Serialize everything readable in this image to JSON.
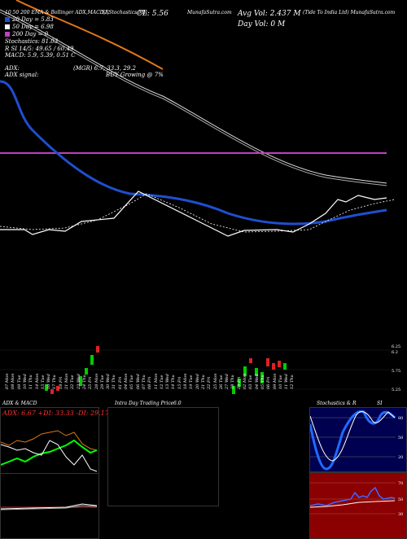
{
  "header": {
    "title_left": "10 50 200 EMA & Bollinger ADX,MACD,R",
    "title_mid": "SI,Stochastics MR",
    "cl": "CL: 5.56",
    "title_mid2": "MunafaSutra.com",
    "title_ss": "SI",
    "avg_vol": "Avg Vol: 2.437 M",
    "day_vol": "Day Vol: 0   M",
    "company": "(Tide To  India Ltd) MunafaSutra.com"
  },
  "legend": [
    {
      "label": "20  Day = 5.83",
      "color": "#1f4fd0"
    },
    {
      "label": "50  Day = 6.98",
      "color": "#ffffff"
    },
    {
      "label": "200  Day = 0",
      "color": "#c040c0"
    }
  ],
  "indicators": {
    "stochastics": "Stochastics: 81.03",
    "rsi": "R          SI 14/5: 49.65 / 60.49",
    "macd": "MACD: 5.9, 5.39, 0.51 C",
    "adx": "ADX:",
    "adx_mid": "(MGR) 6.7, 33.3, 29.2",
    "adx_signal": "ADX  signal:",
    "buy_signal": "BUY Growing @ 7%"
  },
  "price_axis": [
    "6.25",
    "6.2",
    "5.75",
    "5.25"
  ],
  "dates": [
    "07 Mon",
    "08 Mon",
    "09 Tue",
    "10 Wed",
    "11 Thu",
    "14 Mon",
    "15 Tue",
    "16 Wed",
    "17 Thu",
    "18 Fri",
    "21 Mon",
    "22 Tue",
    "23 Wed",
    "24 Thu",
    "25 Fri",
    "28 Mon",
    "29 Tue",
    "30 Wed",
    "31 Thu",
    "01 Fri",
    "04 Mon",
    "05 Tue",
    "06 Wed",
    "07 Thu",
    "08 Fri",
    "11 Mon",
    "12 Tue",
    "13 Wed",
    "14 Thu",
    "15 Fri",
    "18 Mon",
    "19 Tue",
    "20 Wed",
    "21 Thu",
    "22 Fri",
    "25 Mon",
    "26 Tue",
    "27 Wed",
    "28 Thu",
    "29 Fri",
    "02 Mon",
    "03 Tue",
    "04 Wed",
    "05 Thu",
    "06 Fri",
    "09 Mon",
    "10 Tue",
    "11 Wed",
    "12 Thu"
  ],
  "bottom_panels": {
    "adx_title": "ADX & MACD",
    "adx_values": "ADX: 6.67  +DI: 33.33  -DI: 29.17",
    "intraday_title": "Intra Day Trading Price",
    "intraday_value": "6.0",
    "stoch_title": "Stochastics & R",
    "stoch_si": "SI",
    "stoch_levels": [
      "80",
      "50",
      "20"
    ],
    "rsi_levels": [
      "70",
      "50",
      "30"
    ]
  },
  "colors": {
    "ema20": "#1f4fd0",
    "ema50": "#ffffff",
    "ema200": "#c040c0",
    "bollinger": "#e07818",
    "up": "#00cc00",
    "down": "#dd2222",
    "stoch_bg": "#000050",
    "rsi_bg": "#8b0000"
  }
}
